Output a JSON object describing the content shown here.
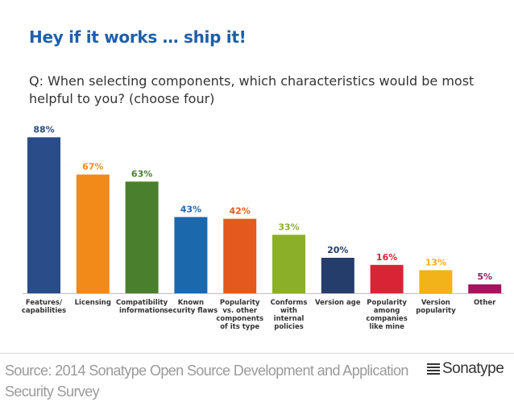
{
  "header": {
    "title": "Hey if it works … ship it!",
    "question": "Q: When selecting components, which characteristics would be most helpful to you? (choose four)"
  },
  "chart_data": {
    "type": "bar",
    "title": "",
    "xlabel": "",
    "ylabel": "",
    "ylim": [
      0,
      100
    ],
    "categories": [
      [
        "Features/",
        "capabilities"
      ],
      [
        "Licensing"
      ],
      [
        "Compatibility",
        "information"
      ],
      [
        "Known",
        "security flaws"
      ],
      [
        "Popularity",
        "vs. other",
        "components",
        "of its type"
      ],
      [
        "Conforms",
        "with",
        "internal",
        "policies"
      ],
      [
        "Version age"
      ],
      [
        "Popularity",
        "among",
        "companies",
        "like mine"
      ],
      [
        "Version",
        "popularity"
      ],
      [
        "Other"
      ]
    ],
    "values": [
      88,
      67,
      63,
      43,
      42,
      33,
      20,
      16,
      13,
      5
    ],
    "value_labels": [
      "88%",
      "67%",
      "63%",
      "43%",
      "42%",
      "33%",
      "20%",
      "16%",
      "13%",
      "5%"
    ],
    "colors": [
      "#2a4d8a",
      "#f28a1a",
      "#4a7f2e",
      "#1c68ad",
      "#e3591e",
      "#8caf2a",
      "#243d6b",
      "#d92436",
      "#f2b21a",
      "#a3155e"
    ]
  },
  "footer": {
    "source": "Source: 2014 Sonatype Open Source Development and Application Security Survey",
    "logo_text": "Sonatype"
  }
}
